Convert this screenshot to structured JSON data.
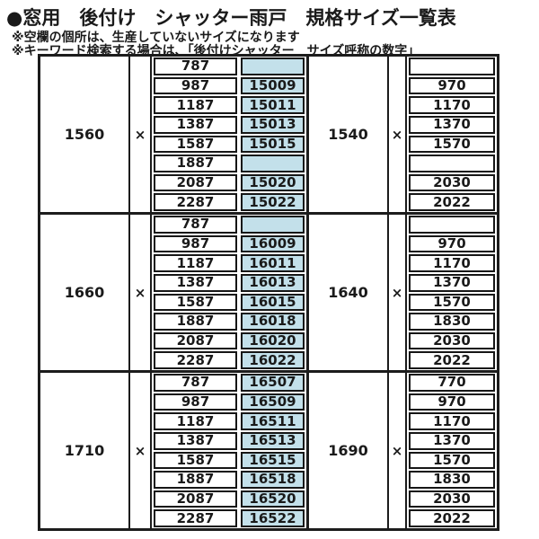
{
  "title": "●窓用　後付け　シャッター雨戸　規格サイズ一覧表",
  "notes": [
    "※空欄の個所は、生産していないサイズになります",
    "※キーワード検索する場合は、「後付けシャッター　サイズ呼称の数字」"
  ],
  "multiply_sign": "×",
  "colors": {
    "code_cell_bg": "#c3e0ea",
    "border": "#1c1c1c",
    "text": "#1a1a1a"
  },
  "table": {
    "blocks": [
      {
        "left_height": "1560",
        "right_height": "1540",
        "rows": [
          {
            "width": "787",
            "code": "",
            "right": ""
          },
          {
            "width": "987",
            "code": "15009",
            "right": "970"
          },
          {
            "width": "1187",
            "code": "15011",
            "right": "1170"
          },
          {
            "width": "1387",
            "code": "15013",
            "right": "1370"
          },
          {
            "width": "1587",
            "code": "15015",
            "right": "1570"
          },
          {
            "width": "1887",
            "code": "",
            "right": ""
          },
          {
            "width": "2087",
            "code": "15020",
            "right": "2030"
          },
          {
            "width": "2287",
            "code": "15022",
            "right": "2022"
          }
        ]
      },
      {
        "left_height": "1660",
        "right_height": "1640",
        "rows": [
          {
            "width": "787",
            "code": "",
            "right": ""
          },
          {
            "width": "987",
            "code": "16009",
            "right": "970"
          },
          {
            "width": "1187",
            "code": "16011",
            "right": "1170"
          },
          {
            "width": "1387",
            "code": "16013",
            "right": "1370"
          },
          {
            "width": "1587",
            "code": "16015",
            "right": "1570"
          },
          {
            "width": "1887",
            "code": "16018",
            "right": "1830"
          },
          {
            "width": "2087",
            "code": "16020",
            "right": "2030"
          },
          {
            "width": "2287",
            "code": "16022",
            "right": "2022"
          }
        ]
      },
      {
        "left_height": "1710",
        "right_height": "1690",
        "rows": [
          {
            "width": "787",
            "code": "16507",
            "right": "770"
          },
          {
            "width": "987",
            "code": "16509",
            "right": "970"
          },
          {
            "width": "1187",
            "code": "16511",
            "right": "1170"
          },
          {
            "width": "1387",
            "code": "16513",
            "right": "1370"
          },
          {
            "width": "1587",
            "code": "16515",
            "right": "1570"
          },
          {
            "width": "1887",
            "code": "16518",
            "right": "1830"
          },
          {
            "width": "2087",
            "code": "16520",
            "right": "2030"
          },
          {
            "width": "2287",
            "code": "16522",
            "right": "2022"
          }
        ]
      }
    ]
  }
}
